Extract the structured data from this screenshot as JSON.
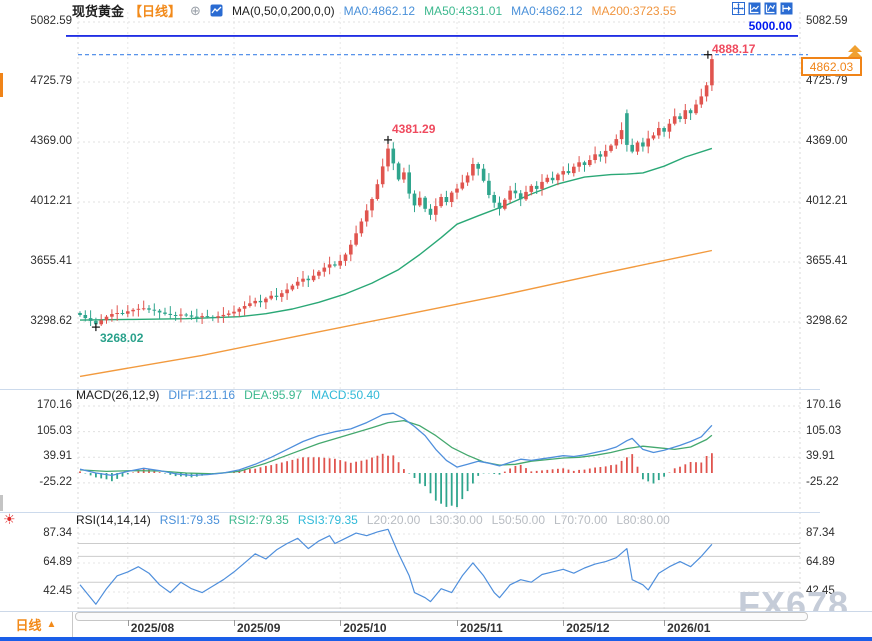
{
  "header": {
    "symbol": "现货黄金",
    "period": "【日线】",
    "ma_group": "MA(0,50,0,200,0,0)",
    "ma0": "MA0:4862.12",
    "ma50": "MA50:4331.01",
    "ma0b": "MA0:4862.12",
    "ma200": "MA200:3723.55"
  },
  "icons": {
    "plus": "⊕",
    "rsi_marker": "☀",
    "period_arrow": "▲"
  },
  "macd_header": {
    "title": "MACD(26,12,9)",
    "diff": "DIFF:121.16",
    "dea": "DEA:95.97",
    "macd": "MACD:50.40"
  },
  "rsi_header": {
    "title": "RSI(14,14,14)",
    "rsi1": "RSI1:79.35",
    "rsi2": "RSI2:79.35",
    "rsi3": "RSI3:79.35",
    "l20": "L20:20.00",
    "l30": "L30:30.00",
    "l50": "L50:50.00",
    "l70": "L70:70.00",
    "l80": "L80:80.00"
  },
  "annotations": {
    "alert_label": "5000.00",
    "chart_high": "4888.17",
    "oct_peak": "4381.29",
    "aug_low": "3268.02"
  },
  "price_tag": "4862.03",
  "bottom": {
    "period": "日线",
    "watermark": "FX678"
  },
  "colors": {
    "up": "#e0544e",
    "down": "#2fa58d",
    "ma50": "#2aa876",
    "ma200": "#f29a3e",
    "diff": "#4f8fdc",
    "dea": "#44a86e",
    "macd_cyan": "#2fb9d8",
    "accent_orange": "#f28a1a",
    "alert_blue": "#0010e0",
    "dashed_blue": "#4285e8",
    "annotation_red": "#ef4a5e",
    "annotation_green": "#2aa18b"
  },
  "chart_data": {
    "type": "candlestick+indicators",
    "instrument": "现货黄金 daily (spot gold)",
    "x_axis": {
      "month_ticks": [
        {
          "label": "2025/08",
          "day": 9
        },
        {
          "label": "2025/09",
          "day": 29
        },
        {
          "label": "2025/10",
          "day": 49
        },
        {
          "label": "2025/11",
          "day": 71
        },
        {
          "label": "2025/12",
          "day": 91
        },
        {
          "label": "2026/01",
          "day": 110
        }
      ]
    },
    "price_panel": {
      "axis_ticks": [
        5082.59,
        4725.79,
        4369.0,
        4012.21,
        3655.41,
        3298.62
      ],
      "first_open": 3352,
      "closes": [
        3340,
        3322,
        3305,
        3285,
        3308,
        3330,
        3346,
        3352,
        3348,
        3362,
        3371,
        3377,
        3380,
        3372,
        3366,
        3355,
        3347,
        3340,
        3336,
        3343,
        3338,
        3331,
        3327,
        3334,
        3329,
        3324,
        3333,
        3341,
        3349,
        3360,
        3378,
        3394,
        3410,
        3424,
        3416,
        3438,
        3455,
        3448,
        3470,
        3492,
        3515,
        3538,
        3556,
        3547,
        3574,
        3598,
        3622,
        3641,
        3634,
        3662,
        3700,
        3758,
        3826,
        3896,
        3962,
        4030,
        4118,
        4224,
        4330,
        4242,
        4146,
        4188,
        4062,
        3992,
        4038,
        3972,
        3936,
        3988,
        4042,
        4012,
        4068,
        4092,
        4128,
        4170,
        4238,
        4210,
        4138,
        4054,
        4008,
        3972,
        4026,
        4080,
        4064,
        4028,
        4072,
        4108,
        4090,
        4132,
        4156,
        4142,
        4176,
        4196,
        4184,
        4222,
        4248,
        4232,
        4262,
        4296,
        4282,
        4316,
        4348,
        4386,
        4440,
        4352,
        4312,
        4366,
        4342,
        4390,
        4408,
        4452,
        4430,
        4478,
        4522,
        4506,
        4558,
        4540,
        4592,
        4640,
        4706,
        4862.03
      ],
      "special": {
        "3": {
          "low": 3268.02
        },
        "58": {
          "high": 4381.29
        },
        "103": {
          "open": 4540,
          "high": 4562
        },
        "119": {
          "high": 4888.17,
          "low": 4672
        }
      },
      "ma50": [
        [
          0,
          3310
        ],
        [
          10,
          3314
        ],
        [
          20,
          3318
        ],
        [
          30,
          3330
        ],
        [
          35,
          3348
        ],
        [
          40,
          3376
        ],
        [
          45,
          3416
        ],
        [
          50,
          3466
        ],
        [
          55,
          3530
        ],
        [
          60,
          3610
        ],
        [
          64,
          3700
        ],
        [
          68,
          3800
        ],
        [
          71,
          3880
        ],
        [
          75,
          3930
        ],
        [
          80,
          3990
        ],
        [
          85,
          4060
        ],
        [
          90,
          4120
        ],
        [
          95,
          4160
        ],
        [
          100,
          4175
        ],
        [
          103,
          4178
        ],
        [
          106,
          4185
        ],
        [
          110,
          4225
        ],
        [
          114,
          4280
        ],
        [
          119,
          4331.01
        ]
      ],
      "ma200": [
        [
          0,
          2975
        ],
        [
          23,
          3100
        ],
        [
          41,
          3215
        ],
        [
          60,
          3335
        ],
        [
          79,
          3455
        ],
        [
          98,
          3585
        ],
        [
          119,
          3723.55
        ]
      ],
      "alert_line": 5000.0,
      "high_line": 4888.17,
      "last_price": 4862.03
    },
    "macd_panel": {
      "axis_ticks": [
        170.16,
        105.03,
        39.91,
        -25.22
      ],
      "diff": [
        [
          0,
          10
        ],
        [
          3,
          0
        ],
        [
          6,
          -6
        ],
        [
          9,
          4
        ],
        [
          12,
          12
        ],
        [
          15,
          6
        ],
        [
          18,
          -2
        ],
        [
          21,
          -6
        ],
        [
          24,
          -4
        ],
        [
          27,
          0
        ],
        [
          30,
          8
        ],
        [
          33,
          22
        ],
        [
          36,
          40
        ],
        [
          39,
          60
        ],
        [
          42,
          80
        ],
        [
          45,
          95
        ],
        [
          48,
          105
        ],
        [
          51,
          112
        ],
        [
          54,
          128
        ],
        [
          57,
          148
        ],
        [
          59,
          152
        ],
        [
          61,
          138
        ],
        [
          63,
          118
        ],
        [
          65,
          95
        ],
        [
          67,
          60
        ],
        [
          69,
          32
        ],
        [
          71,
          15
        ],
        [
          73,
          22
        ],
        [
          75,
          30
        ],
        [
          77,
          25
        ],
        [
          79,
          18
        ],
        [
          81,
          27
        ],
        [
          83,
          35
        ],
        [
          85,
          32
        ],
        [
          87,
          36
        ],
        [
          89,
          40
        ],
        [
          91,
          44
        ],
        [
          93,
          42
        ],
        [
          95,
          46
        ],
        [
          97,
          52
        ],
        [
          99,
          58
        ],
        [
          101,
          66
        ],
        [
          103,
          82
        ],
        [
          104,
          88
        ],
        [
          106,
          60
        ],
        [
          108,
          52
        ],
        [
          110,
          58
        ],
        [
          113,
          70
        ],
        [
          115,
          80
        ],
        [
          117,
          92
        ],
        [
          119,
          121.16
        ]
      ],
      "dea": [
        [
          0,
          8
        ],
        [
          5,
          4
        ],
        [
          10,
          6
        ],
        [
          15,
          5
        ],
        [
          20,
          0
        ],
        [
          25,
          -2
        ],
        [
          30,
          4
        ],
        [
          35,
          25
        ],
        [
          40,
          50
        ],
        [
          45,
          75
        ],
        [
          50,
          95
        ],
        [
          55,
          115
        ],
        [
          58,
          128
        ],
        [
          61,
          133
        ],
        [
          64,
          120
        ],
        [
          67,
          95
        ],
        [
          70,
          65
        ],
        [
          73,
          45
        ],
        [
          76,
          28
        ],
        [
          79,
          20
        ],
        [
          82,
          22
        ],
        [
          85,
          30
        ],
        [
          88,
          34
        ],
        [
          91,
          38
        ],
        [
          94,
          40
        ],
        [
          97,
          45
        ],
        [
          100,
          52
        ],
        [
          103,
          62
        ],
        [
          106,
          68
        ],
        [
          109,
          64
        ],
        [
          112,
          60
        ],
        [
          115,
          66
        ],
        [
          118,
          85
        ],
        [
          119,
          95.97
        ]
      ],
      "last": {
        "diff": 121.16,
        "dea": 95.97,
        "macd": 50.4
      }
    },
    "rsi_panel": {
      "axis_ticks": [
        87.34,
        64.89,
        42.45
      ],
      "levels": [
        80,
        70,
        50,
        30
      ],
      "rsi": [
        [
          0,
          48
        ],
        [
          2,
          38
        ],
        [
          3,
          33
        ],
        [
          5,
          45
        ],
        [
          7,
          55
        ],
        [
          9,
          58
        ],
        [
          11,
          62
        ],
        [
          13,
          57
        ],
        [
          15,
          48
        ],
        [
          17,
          42
        ],
        [
          19,
          50
        ],
        [
          21,
          45
        ],
        [
          23,
          42
        ],
        [
          25,
          47
        ],
        [
          27,
          52
        ],
        [
          29,
          58
        ],
        [
          31,
          65
        ],
        [
          33,
          72
        ],
        [
          35,
          68
        ],
        [
          37,
          75
        ],
        [
          39,
          80
        ],
        [
          41,
          84
        ],
        [
          43,
          76
        ],
        [
          45,
          82
        ],
        [
          47,
          86
        ],
        [
          48,
          80
        ],
        [
          50,
          84
        ],
        [
          52,
          88
        ],
        [
          54,
          86
        ],
        [
          56,
          89
        ],
        [
          58,
          91
        ],
        [
          60,
          72
        ],
        [
          62,
          55
        ],
        [
          63,
          42
        ],
        [
          65,
          38
        ],
        [
          66,
          35
        ],
        [
          68,
          45
        ],
        [
          70,
          42
        ],
        [
          72,
          55
        ],
        [
          74,
          65
        ],
        [
          76,
          55
        ],
        [
          78,
          42
        ],
        [
          79,
          38
        ],
        [
          81,
          48
        ],
        [
          83,
          52
        ],
        [
          85,
          50
        ],
        [
          87,
          56
        ],
        [
          89,
          58
        ],
        [
          91,
          60
        ],
        [
          93,
          57
        ],
        [
          95,
          61
        ],
        [
          97,
          64
        ],
        [
          99,
          66
        ],
        [
          101,
          69
        ],
        [
          103,
          76
        ],
        [
          104,
          52
        ],
        [
          106,
          48
        ],
        [
          107,
          44
        ],
        [
          109,
          57
        ],
        [
          111,
          62
        ],
        [
          113,
          66
        ],
        [
          115,
          62
        ],
        [
          117,
          70
        ],
        [
          119,
          79.35
        ]
      ],
      "last": 79.35
    }
  }
}
